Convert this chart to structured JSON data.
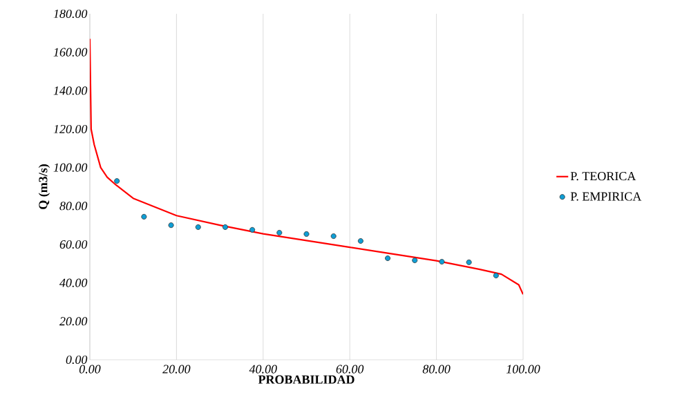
{
  "chart_data": {
    "type": "line",
    "xlabel": "PROBABILIDAD",
    "ylabel": "Q (m3/s)",
    "xlim": [
      0,
      100
    ],
    "ylim": [
      0,
      180
    ],
    "xticks": [
      {
        "value": 0,
        "label": "0.00"
      },
      {
        "value": 20,
        "label": "20.00"
      },
      {
        "value": 40,
        "label": "40.00"
      },
      {
        "value": 60,
        "label": "60.00"
      },
      {
        "value": 80,
        "label": "80.00"
      },
      {
        "value": 100,
        "label": "100.00"
      }
    ],
    "yticks": [
      {
        "value": 0,
        "label": "0.00"
      },
      {
        "value": 20,
        "label": "20.00"
      },
      {
        "value": 40,
        "label": "40.00"
      },
      {
        "value": 60,
        "label": "60.00"
      },
      {
        "value": 80,
        "label": "80.00"
      },
      {
        "value": 100,
        "label": "100.00"
      },
      {
        "value": 120,
        "label": "120.00"
      },
      {
        "value": 140,
        "label": "140.00"
      },
      {
        "value": 160,
        "label": "160.00"
      },
      {
        "value": 180,
        "label": "180.00"
      }
    ],
    "grid": "x",
    "legend": "right",
    "series": [
      {
        "name": "P. TEORICA",
        "color": "#ff0000",
        "marker": "none",
        "x": [
          0,
          0.3,
          1,
          2.5,
          4,
          6,
          10,
          20,
          30,
          40,
          50,
          60,
          70,
          80,
          90,
          95,
          99,
          100
        ],
        "values": [
          167,
          120,
          112,
          100,
          95,
          91,
          84,
          75,
          70,
          65.5,
          62,
          58.5,
          55,
          51.5,
          47,
          44.5,
          39,
          34
        ]
      },
      {
        "name": "P. EMPIRICA",
        "type": "scatter",
        "color": "#0f9ed5",
        "marker": "circle",
        "x": [
          6.25,
          12.5,
          18.75,
          25,
          31.25,
          37.5,
          43.75,
          50,
          56.25,
          62.5,
          68.75,
          75,
          81.25,
          87.5,
          93.75
        ],
        "values": [
          93,
          74.4,
          70,
          69,
          69,
          67.6,
          66.1,
          65.4,
          64.3,
          61.8,
          52.8,
          51.7,
          51,
          50.7,
          43.8
        ]
      }
    ]
  }
}
